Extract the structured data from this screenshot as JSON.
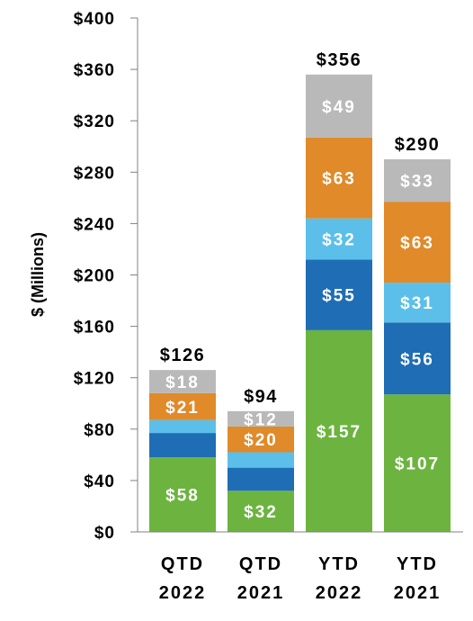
{
  "chart_data": {
    "type": "bar",
    "stacked": true,
    "ylabel": "$ (Millions)",
    "ylim": [
      0,
      400
    ],
    "yticks": [
      0,
      40,
      80,
      120,
      160,
      200,
      240,
      280,
      320,
      360,
      400
    ],
    "ytick_labels": [
      "$0",
      "$40",
      "$80",
      "$120",
      "$160",
      "$200",
      "$240",
      "$280",
      "$320",
      "$360",
      "$400"
    ],
    "grid": false,
    "categories": [
      {
        "line1": "QTD",
        "line2": "2022"
      },
      {
        "line1": "QTD",
        "line2": "2021"
      },
      {
        "line1": "YTD",
        "line2": "2022"
      },
      {
        "line1": "YTD",
        "line2": "2021"
      }
    ],
    "totals": [
      126,
      94,
      356,
      290
    ],
    "total_labels": [
      "$126",
      "$94",
      "$356",
      "$290"
    ],
    "series": [
      {
        "color": "#6cb43f",
        "values": [
          58,
          32,
          157,
          107
        ],
        "labels": [
          "$58",
          "$32",
          "$157",
          "$107"
        ]
      },
      {
        "color": "#1f6db5",
        "values": [
          19,
          18,
          55,
          56
        ],
        "labels": [
          "",
          "",
          "$55",
          "$56"
        ]
      },
      {
        "color": "#5bbfea",
        "values": [
          10,
          12,
          32,
          31
        ],
        "labels": [
          "",
          "",
          "$32",
          "$31"
        ]
      },
      {
        "color": "#e08a2a",
        "values": [
          21,
          20,
          63,
          63
        ],
        "labels": [
          "$21",
          "$20",
          "$63",
          "$63"
        ]
      },
      {
        "color": "#b9b9b9",
        "values": [
          18,
          12,
          49,
          33
        ],
        "labels": [
          "$18",
          "$12",
          "$49",
          "$33"
        ]
      }
    ]
  }
}
